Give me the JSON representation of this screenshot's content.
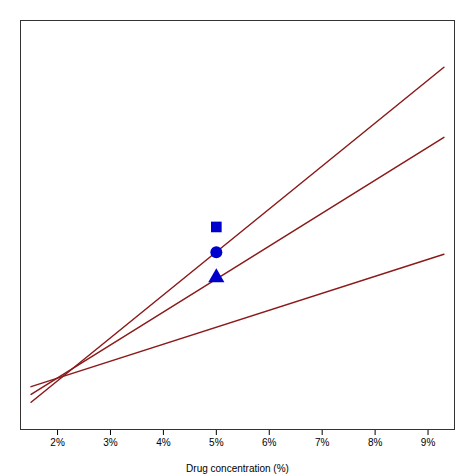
{
  "chart_data": {
    "type": "line",
    "xlabel": "Drug concentration (%)",
    "xlim": [
      1.3,
      9.5
    ],
    "ylim": [
      -0.05,
      1.0
    ],
    "xticks": [
      {
        "value": 2,
        "label": "2%"
      },
      {
        "value": 3,
        "label": "3%"
      },
      {
        "value": 4,
        "label": "4%"
      },
      {
        "value": 5,
        "label": "5%"
      },
      {
        "value": 6,
        "label": "6%"
      },
      {
        "value": 7,
        "label": "7%"
      },
      {
        "value": 8,
        "label": "8%"
      },
      {
        "value": 9,
        "label": "9%"
      }
    ],
    "tick_labels": "x",
    "grid": false,
    "series": [
      {
        "type": "line",
        "color": "#8B1A1A",
        "x": [
          1.5,
          9.3
        ],
        "values": [
          0.02,
          0.88
        ]
      },
      {
        "type": "line",
        "color": "#8B1A1A",
        "x": [
          1.5,
          9.3
        ],
        "values": [
          0.04,
          0.7
        ]
      },
      {
        "type": "line",
        "color": "#8B1A1A",
        "x": [
          1.5,
          9.3
        ],
        "values": [
          0.06,
          0.4
        ]
      },
      {
        "type": "scatter",
        "color": "#0000CC",
        "marker": "square",
        "x": [
          5.0
        ],
        "values": [
          0.47
        ]
      },
      {
        "type": "scatter",
        "color": "#0000CC",
        "marker": "circle",
        "x": [
          5.0
        ],
        "values": [
          0.405
        ]
      },
      {
        "type": "scatter",
        "color": "#0000CC",
        "marker": "triangle",
        "x": [
          5.0
        ],
        "values": [
          0.34
        ]
      }
    ]
  }
}
